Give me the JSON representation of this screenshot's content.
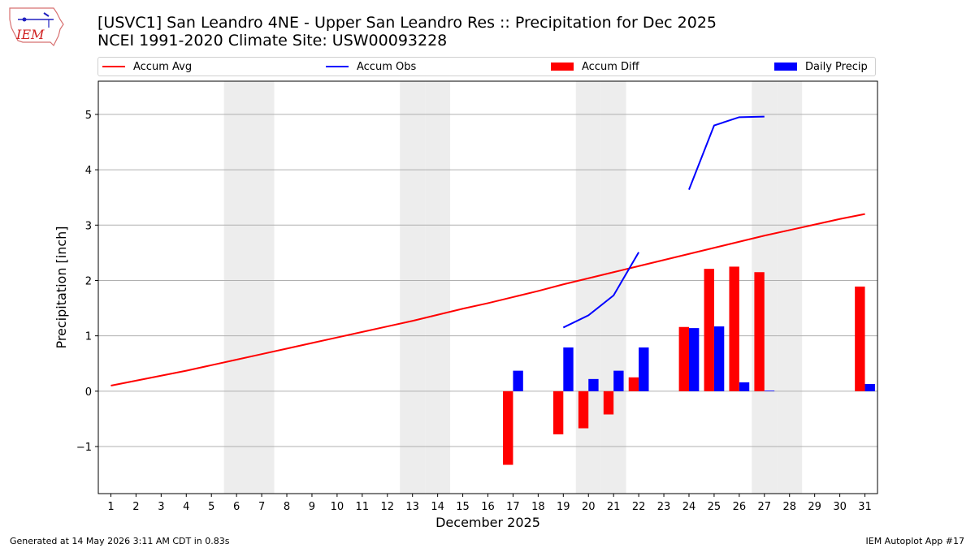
{
  "header": {
    "title_line1": "[USVC1] San Leandro 4NE - Upper San Leandro Res :: Precipitation for Dec 2025",
    "title_line2": "NCEI 1991-2020 Climate Site: USW00093228",
    "logo_text": "IEM"
  },
  "footer": {
    "left": "Generated at 14 May 2026 3:11 AM CDT in 0.83s",
    "right": "IEM Autoplot App #17"
  },
  "colors": {
    "avg": "#ff0000",
    "obs": "#0000ff",
    "diff": "#ff0000",
    "daily": "#0000ff",
    "weekend": "#ededed",
    "grid": "#b0b0b0"
  },
  "chart_data": {
    "type": "bar",
    "xlabel": "December 2025",
    "ylabel": "Precipitation [inch]",
    "xlim": [
      0.5,
      31.5
    ],
    "ylim": [
      -1.85,
      5.6
    ],
    "yticks": [
      -1,
      0,
      1,
      2,
      3,
      4,
      5
    ],
    "ytick_labels": [
      "−1",
      "0",
      "1",
      "2",
      "3",
      "4",
      "5"
    ],
    "grid": "horizontal",
    "legend_placement": "top, above plot",
    "shaded_days": [
      6,
      7,
      13,
      14,
      20,
      21,
      27,
      28
    ],
    "categories": [
      "1",
      "2",
      "3",
      "4",
      "5",
      "6",
      "7",
      "8",
      "9",
      "10",
      "11",
      "12",
      "13",
      "14",
      "15",
      "16",
      "17",
      "18",
      "19",
      "20",
      "21",
      "22",
      "23",
      "24",
      "25",
      "26",
      "27",
      "28",
      "29",
      "30",
      "31"
    ],
    "series": [
      {
        "name": "Accum Avg",
        "kind": "line",
        "x": [
          1,
          2,
          3,
          4,
          5,
          6,
          7,
          8,
          9,
          10,
          11,
          12,
          13,
          14,
          15,
          16,
          17,
          18,
          19,
          20,
          21,
          22,
          23,
          24,
          25,
          26,
          27,
          28,
          29,
          30,
          31
        ],
        "values": [
          0.1,
          0.19,
          0.28,
          0.37,
          0.47,
          0.57,
          0.67,
          0.77,
          0.87,
          0.97,
          1.07,
          1.17,
          1.27,
          1.38,
          1.49,
          1.59,
          1.7,
          1.81,
          1.93,
          2.04,
          2.15,
          2.26,
          2.37,
          2.48,
          2.59,
          2.7,
          2.81,
          2.91,
          3.01,
          3.11,
          3.2
        ]
      },
      {
        "name": "Accum Obs",
        "kind": "line",
        "segments": [
          {
            "x": [
              19,
              20,
              21,
              22
            ],
            "values": [
              1.15,
              1.37,
              1.73,
              2.51
            ]
          },
          {
            "x": [
              24,
              25,
              26,
              27
            ],
            "values": [
              3.64,
              4.8,
              4.95,
              4.96
            ]
          }
        ]
      },
      {
        "name": "Accum Diff",
        "kind": "bar",
        "offset": "left",
        "x": [
          17,
          19,
          20,
          21,
          22,
          24,
          25,
          26,
          27,
          31
        ],
        "values": [
          -1.33,
          -0.78,
          -0.67,
          -0.42,
          0.25,
          1.16,
          2.21,
          2.25,
          2.15,
          1.89
        ]
      },
      {
        "name": "Daily Precip",
        "kind": "bar",
        "offset": "right",
        "x": [
          17,
          19,
          20,
          21,
          22,
          24,
          25,
          26,
          27,
          31
        ],
        "values": [
          0.37,
          0.79,
          0.22,
          0.37,
          0.79,
          1.14,
          1.17,
          0.16,
          0.01,
          0.13
        ]
      }
    ]
  }
}
